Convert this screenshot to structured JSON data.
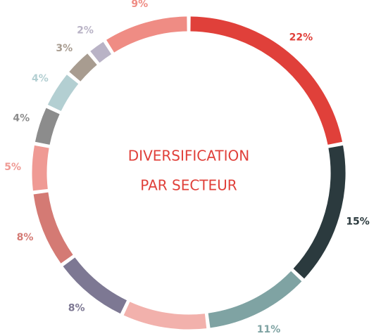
{
  "chart_data": {
    "type": "donut",
    "title": "DIVERSIFICATION",
    "subtitle": "PAR SECTEUR",
    "values": [
      22,
      15,
      11,
      9,
      8,
      8,
      5,
      4,
      4,
      3,
      2,
      9
    ],
    "value_labels": [
      "22%",
      "15%",
      "11%",
      null,
      "8%",
      "8%",
      "5%",
      "4%",
      "4%",
      "3%",
      "2%",
      "9%"
    ],
    "colors": [
      "#e0403a",
      "#2b3a3e",
      "#7fa3a3",
      "#f2b1ac",
      "#7d7893",
      "#d47a74",
      "#ef9a94",
      "#8c8c8c",
      "#b3cfd2",
      "#a89c90",
      "#b9b3c6",
      "#ef8c84"
    ]
  }
}
